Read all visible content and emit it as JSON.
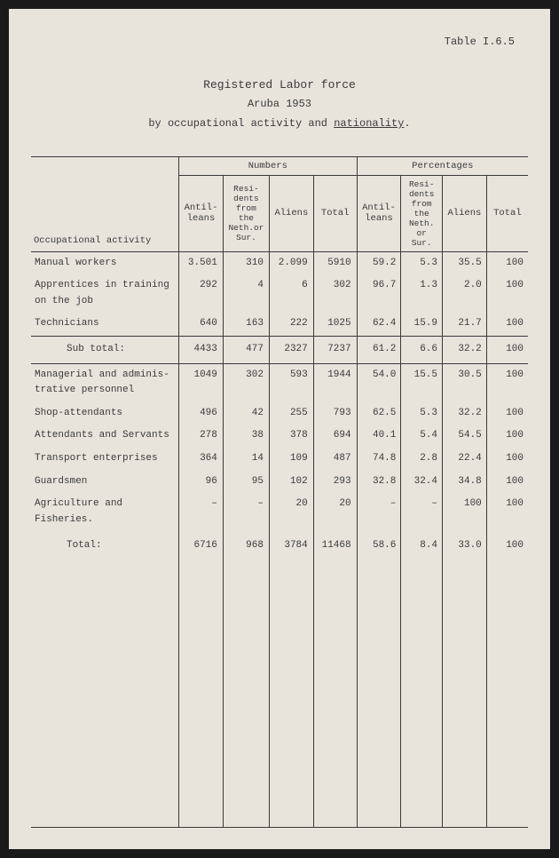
{
  "tableNumber": "Table I.6.5",
  "title": {
    "line1": "Registered Labor force",
    "line2": "Aruba 1953",
    "line3_pre": "by occupational activity and ",
    "line3_underlined": "nationality",
    "line3_post": "."
  },
  "headers": {
    "activity": "Occupational activity",
    "numbersGroup": "Numbers",
    "percentagesGroup": "Percentages",
    "antilleans": "Antil-\nleans",
    "residents": "Resi-\ndents\nfrom the\nNeth.or\nSur.",
    "aliens": "Aliens",
    "total": "Total",
    "antilleansP": "Antil-\nleans",
    "residentsP": "Resi-\ndents\nfrom the\nNeth.\nor Sur.",
    "aliensP": "Aliens",
    "totalP": "Total"
  },
  "rows": [
    {
      "activity": "Manual workers",
      "n1": "3.501",
      "n2": "310",
      "n3": "2.099",
      "n4": "5910",
      "p1": "59.2",
      "p2": "5.3",
      "p3": "35.5",
      "p4": "100"
    },
    {
      "activity": "Apprentices in training\non the job",
      "n1": "292",
      "n2": "4",
      "n3": "6",
      "n4": "302",
      "p1": "96.7",
      "p2": "1.3",
      "p3": "2.0",
      "p4": "100"
    },
    {
      "activity": "Technicians",
      "n1": "640",
      "n2": "163",
      "n3": "222",
      "n4": "1025",
      "p1": "62.4",
      "p2": "15.9",
      "p3": "21.7",
      "p4": "100"
    }
  ],
  "subtotal": {
    "activity": "Sub total:",
    "n1": "4433",
    "n2": "477",
    "n3": "2327",
    "n4": "7237",
    "p1": "61.2",
    "p2": "6.6",
    "p3": "32.2",
    "p4": "100"
  },
  "rows2": [
    {
      "activity": "Managerial and adminis-\ntrative personnel",
      "n1": "1049",
      "n2": "302",
      "n3": "593",
      "n4": "1944",
      "p1": "54.0",
      "p2": "15.5",
      "p3": "30.5",
      "p4": "100"
    },
    {
      "activity": "Shop-attendants",
      "n1": "496",
      "n2": "42",
      "n3": "255",
      "n4": "793",
      "p1": "62.5",
      "p2": "5.3",
      "p3": "32.2",
      "p4": "100"
    },
    {
      "activity": "Attendants and Servants",
      "n1": "278",
      "n2": "38",
      "n3": "378",
      "n4": "694",
      "p1": "40.1",
      "p2": "5.4",
      "p3": "54.5",
      "p4": "100"
    },
    {
      "activity": "Transport enterprises",
      "n1": "364",
      "n2": "14",
      "n3": "109",
      "n4": "487",
      "p1": "74.8",
      "p2": "2.8",
      "p3": "22.4",
      "p4": "100"
    },
    {
      "activity": "Guardsmen",
      "n1": "96",
      "n2": "95",
      "n3": "102",
      "n4": "293",
      "p1": "32.8",
      "p2": "32.4",
      "p3": "34.8",
      "p4": "100"
    },
    {
      "activity": "Agriculture and\nFisheries.",
      "n1": "–",
      "n2": "–",
      "n3": "20",
      "n4": "20",
      "p1": "–",
      "p2": "–",
      "p3": "100",
      "p4": "100"
    }
  ],
  "total": {
    "activity": "Total:",
    "n1": "6716",
    "n2": "968",
    "n3": "3784",
    "n4": "11468",
    "p1": "58.6",
    "p2": "8.4",
    "p3": "33.0",
    "p4": "100"
  },
  "styling": {
    "backgroundColor": "#e8e4dc",
    "textColor": "#3a3a3a",
    "fontFamily": "Courier New",
    "fontSize": 11,
    "borderColor": "#3a3a3a"
  }
}
